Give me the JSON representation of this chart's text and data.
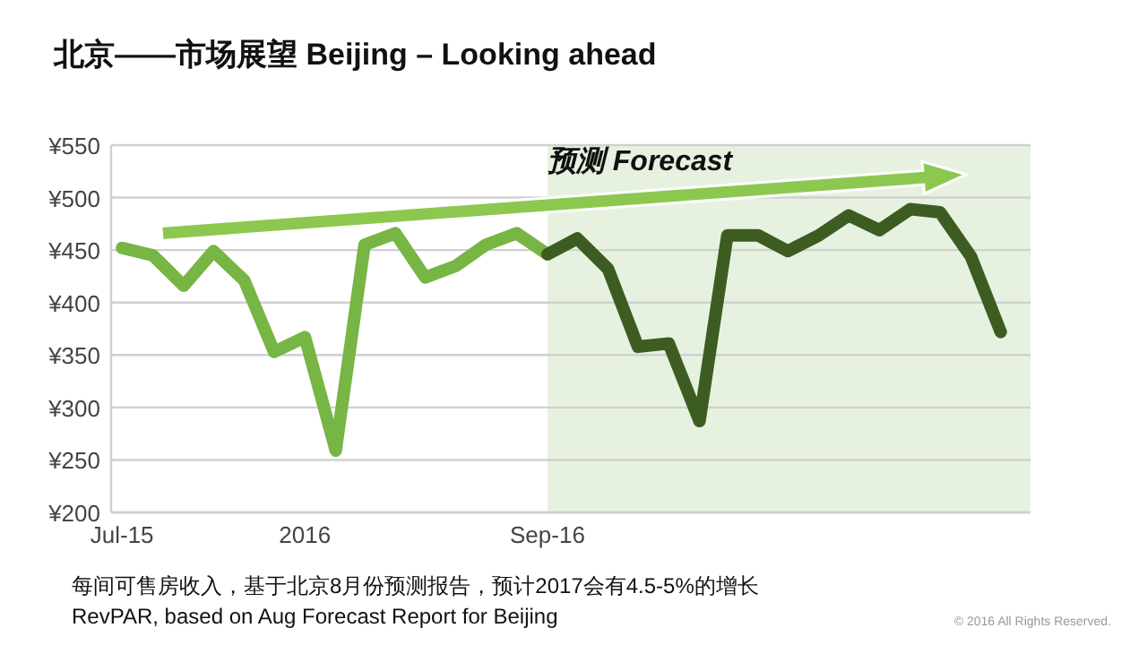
{
  "chart_data": {
    "type": "line",
    "title": "北京——市场展望 Beijing – Looking ahead",
    "x": [
      "2015-07",
      "2015-08",
      "2015-09",
      "2015-10",
      "2015-11",
      "2015-12",
      "2016-01",
      "2016-02",
      "2016-03",
      "2016-04",
      "2016-05",
      "2016-06",
      "2016-07",
      "2016-08",
      "2016-09",
      "2016-10",
      "2016-11",
      "2016-12",
      "2017-01",
      "2017-02",
      "2017-03",
      "2017-04",
      "2017-05",
      "2017-06",
      "2017-07",
      "2017-08",
      "2017-09",
      "2017-10",
      "2017-11",
      "2017-12"
    ],
    "series": [
      {
        "color": "#77b544",
        "values": [
          452,
          445,
          416,
          449,
          421,
          353,
          367,
          259,
          455,
          466,
          424,
          435,
          455,
          466,
          446,
          null,
          null,
          null,
          null,
          null,
          null,
          null,
          null,
          null,
          null,
          null,
          null,
          null,
          null,
          null
        ]
      },
      {
        "color": "#3d5c22",
        "values": [
          null,
          null,
          null,
          null,
          null,
          null,
          null,
          null,
          null,
          null,
          null,
          null,
          null,
          null,
          446,
          461,
          432,
          358,
          361,
          287,
          464,
          464,
          449,
          464,
          483,
          469,
          489,
          486,
          444,
          372
        ]
      }
    ],
    "xlim": [
      "2015-06-20",
      "2017-12-31"
    ],
    "xticks": [
      {
        "value": "2015-07",
        "label": "Jul-15"
      },
      {
        "value": "2016-01",
        "label": "2016"
      },
      {
        "value": "2016-09",
        "label": "Sep-16"
      }
    ],
    "ylim": [
      200,
      550
    ],
    "yticks": [
      {
        "value": 200,
        "label": "¥200"
      },
      {
        "value": 250,
        "label": "¥250"
      },
      {
        "value": 300,
        "label": "¥300"
      },
      {
        "value": 350,
        "label": "¥350"
      },
      {
        "value": 400,
        "label": "¥400"
      },
      {
        "value": 450,
        "label": "¥450"
      },
      {
        "value": 500,
        "label": "¥500"
      },
      {
        "value": 550,
        "label": "¥550"
      }
    ],
    "bands": [
      {
        "axis": "x",
        "from": "2016-09",
        "to": "2017-12-31",
        "label": "预测 Forecast",
        "color": "#e6f2df"
      }
    ],
    "annotations": [
      "每间可售房收入，基于北京8月份预测报告，预计2017会有4.5-5%的增长",
      "RevPAR, based on Aug Forecast Report for Beijing",
      "© 2016 All Rights Reserved."
    ],
    "grid": "y",
    "marker": "none",
    "line_style": "solid"
  }
}
